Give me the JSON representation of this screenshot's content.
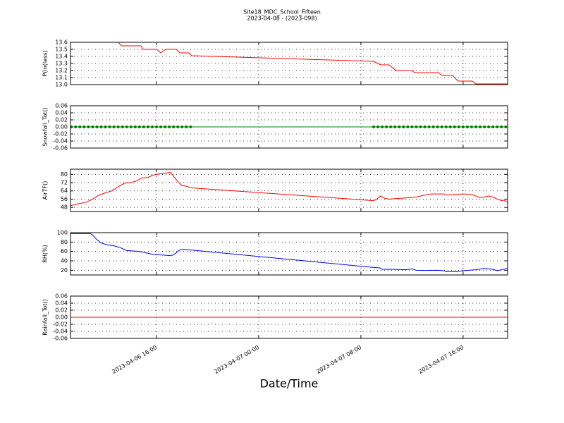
{
  "chart_data": [
    {
      "type": "line",
      "title": "Site18_MDC_School_Fifteen",
      "subtitle": "2023-04-08 - (2023-098)",
      "ylabel": "P(in(less)",
      "xlim": [
        "2023-04-06 09:16",
        "2023-04-07 19:29"
      ],
      "ylim": [
        13.0,
        13.6
      ],
      "yticks": [
        {
          "value": 13,
          "label": "13.0"
        },
        13.1,
        13.2,
        13.3,
        13.4,
        13.5,
        13.6
      ],
      "grid": true,
      "x": [
        "2023-04-06 09:16",
        "2023-04-06 13:01",
        "2023-04-06 13:14",
        "2023-04-06 14:47",
        "2023-04-06 14:57",
        "2023-04-06 16:00",
        "2023-04-06 16:20",
        "2023-04-06 16:43",
        "2023-04-06 17:33",
        "2023-04-06 17:49",
        "2023-04-06 18:32",
        "2023-04-06 18:45",
        "2023-04-07 08:59",
        "2023-04-07 09:33",
        "2023-04-07 10:12",
        "2023-04-07 10:45",
        "2023-04-07 12:01",
        "2023-04-07 12:11",
        "2023-04-07 14:04",
        "2023-04-07 14:21",
        "2023-04-07 15:10",
        "2023-04-07 15:36",
        "2023-04-07 16:43",
        "2023-04-07 16:59",
        "2023-04-07 19:29"
      ],
      "series": [
        {
          "name": "P",
          "color": "#ff0000",
          "values": [
            13.6,
            13.6,
            13.55,
            13.55,
            13.5,
            13.5,
            13.45,
            13.5,
            13.5,
            13.45,
            13.45,
            13.41,
            13.33,
            13.28,
            13.28,
            13.2,
            13.2,
            13.17,
            13.17,
            13.13,
            13.13,
            13.05,
            13.05,
            13.01,
            13.01
          ]
        }
      ]
    },
    {
      "type": "line",
      "ylabel": "Snowfall_Tot()",
      "markers": true,
      "xlim": [
        "2023-04-06 09:16",
        "2023-04-07 19:29"
      ],
      "ylim": [
        -0.06,
        0.06
      ],
      "yticks": [
        -0.06,
        -0.04,
        -0.02,
        {
          "value": 0,
          "label": "0.00"
        },
        0.02,
        0.04,
        0.06
      ],
      "grid": true,
      "x": [
        "2023-04-06 09:20",
        "2023-04-06 09:40",
        "2023-04-06 10:00",
        "2023-04-06 10:20",
        "2023-04-06 10:40",
        "2023-04-06 11:00",
        "2023-04-06 11:20",
        "2023-04-06 11:40",
        "2023-04-06 12:00",
        "2023-04-06 12:20",
        "2023-04-06 12:40",
        "2023-04-06 13:00",
        "2023-04-06 13:20",
        "2023-04-06 13:40",
        "2023-04-06 14:00",
        "2023-04-06 14:20",
        "2023-04-06 14:40",
        "2023-04-06 15:00",
        "2023-04-06 15:20",
        "2023-04-06 15:40",
        "2023-04-06 16:00",
        "2023-04-06 16:20",
        "2023-04-06 16:40",
        "2023-04-06 17:00",
        "2023-04-06 17:20",
        "2023-04-06 17:40",
        "2023-04-06 18:00",
        "2023-04-06 18:20",
        "2023-04-06 18:40",
        "2023-04-07 09:00",
        "2023-04-07 09:20",
        "2023-04-07 09:40",
        "2023-04-07 10:00",
        "2023-04-07 10:20",
        "2023-04-07 10:40",
        "2023-04-07 11:00",
        "2023-04-07 11:20",
        "2023-04-07 11:40",
        "2023-04-07 12:00",
        "2023-04-07 12:20",
        "2023-04-07 12:40",
        "2023-04-07 13:00",
        "2023-04-07 13:20",
        "2023-04-07 13:40",
        "2023-04-07 14:00",
        "2023-04-07 14:20",
        "2023-04-07 14:40",
        "2023-04-07 15:00",
        "2023-04-07 15:20",
        "2023-04-07 15:40",
        "2023-04-07 16:00",
        "2023-04-07 16:20",
        "2023-04-07 16:40",
        "2023-04-07 17:00",
        "2023-04-07 17:20",
        "2023-04-07 17:40",
        "2023-04-07 18:00",
        "2023-04-07 18:20",
        "2023-04-07 18:40",
        "2023-04-07 19:00",
        "2023-04-07 19:20"
      ],
      "series": [
        {
          "name": "Snowfall_Tot",
          "color": "#008000",
          "values": [
            0,
            0,
            0,
            0,
            0,
            0,
            0,
            0,
            0,
            0,
            0,
            0,
            0,
            0,
            0,
            0,
            0,
            0,
            0,
            0,
            0,
            0,
            0,
            0,
            0,
            0,
            0,
            0,
            0,
            0,
            0,
            0,
            0,
            0,
            0,
            0,
            0,
            0,
            0,
            0,
            0,
            0,
            0,
            0,
            0,
            0,
            0,
            0,
            0,
            0,
            0,
            0,
            0,
            0,
            0,
            0,
            0,
            0,
            0,
            0,
            0
          ]
        }
      ]
    },
    {
      "type": "line",
      "ylabel": "AirTF()",
      "xlim": [
        "2023-04-06 09:16",
        "2023-04-07 19:29"
      ],
      "ylim": [
        44,
        85
      ],
      "yticks": [
        48,
        56,
        64,
        72,
        80
      ],
      "grid": true,
      "x": [
        "2023-04-06 09:16",
        "2023-04-06 09:40",
        "2023-04-06 10:30",
        "2023-04-06 11:00",
        "2023-04-06 11:30",
        "2023-04-06 12:00",
        "2023-04-06 12:30",
        "2023-04-06 13:00",
        "2023-04-06 13:30",
        "2023-04-06 14:00",
        "2023-04-06 14:30",
        "2023-04-06 14:50",
        "2023-04-06 15:20",
        "2023-04-06 15:40",
        "2023-04-06 16:00",
        "2023-04-06 16:30",
        "2023-04-06 16:50",
        "2023-04-06 17:05",
        "2023-04-06 17:20",
        "2023-04-06 17:40",
        "2023-04-06 18:00",
        "2023-04-06 18:20",
        "2023-04-06 18:40",
        "2023-04-07 08:59",
        "2023-04-07 09:10",
        "2023-04-07 09:25",
        "2023-04-07 09:32",
        "2023-04-07 09:50",
        "2023-04-07 10:10",
        "2023-04-07 10:40",
        "2023-04-07 11:20",
        "2023-04-07 12:20",
        "2023-04-07 13:00",
        "2023-04-07 13:30",
        "2023-04-07 14:30",
        "2023-04-07 14:40",
        "2023-04-07 15:20",
        "2023-04-07 16:00",
        "2023-04-07 16:40",
        "2023-04-07 17:00",
        "2023-04-07 17:20",
        "2023-04-07 17:40",
        "2023-04-07 18:00",
        "2023-04-07 18:20",
        "2023-04-07 18:40",
        "2023-04-07 19:00",
        "2023-04-07 19:10",
        "2023-04-07 19:29"
      ],
      "series": [
        {
          "name": "AirTF",
          "color": "#ff0000",
          "values": [
            49.5,
            51,
            53,
            56,
            60,
            62,
            64,
            68,
            71.5,
            72,
            74,
            76.5,
            77,
            79,
            80,
            81,
            81.5,
            82,
            78,
            73,
            69,
            68.5,
            67,
            54.5,
            55.5,
            57.5,
            59,
            57,
            56,
            56.5,
            57,
            58,
            60,
            61,
            61,
            60,
            60.5,
            61,
            60.5,
            59,
            57.5,
            58,
            59,
            58,
            56,
            54.5,
            55,
            53
          ]
        }
      ]
    },
    {
      "type": "line",
      "ylabel": "RH(%)",
      "xlim": [
        "2023-04-06 09:16",
        "2023-04-07 19:29"
      ],
      "ylim": [
        10,
        100
      ],
      "yticks": [
        20,
        40,
        60,
        80,
        100
      ],
      "grid": true,
      "x": [
        "2023-04-06 09:16",
        "2023-04-06 10:50",
        "2023-04-06 11:00",
        "2023-04-06 11:20",
        "2023-04-06 11:40",
        "2023-04-06 12:10",
        "2023-04-06 12:40",
        "2023-04-06 13:10",
        "2023-04-06 13:40",
        "2023-04-06 14:10",
        "2023-04-06 14:40",
        "2023-04-06 15:00",
        "2023-04-06 15:20",
        "2023-04-06 15:40",
        "2023-04-06 16:10",
        "2023-04-06 16:40",
        "2023-04-06 17:00",
        "2023-04-06 17:15",
        "2023-04-06 17:30",
        "2023-04-06 17:45",
        "2023-04-06 18:00",
        "2023-04-06 18:20",
        "2023-04-07 08:59",
        "2023-04-07 09:30",
        "2023-04-07 09:40",
        "2023-04-07 10:30",
        "2023-04-07 11:30",
        "2023-04-07 12:00",
        "2023-04-07 12:20",
        "2023-04-07 13:00",
        "2023-04-07 14:00",
        "2023-04-07 14:30",
        "2023-04-07 14:40",
        "2023-04-07 15:30",
        "2023-04-07 16:00",
        "2023-04-07 17:00",
        "2023-04-07 17:40",
        "2023-04-07 18:20",
        "2023-04-07 18:40",
        "2023-04-07 19:29"
      ],
      "series": [
        {
          "name": "RH",
          "color": "#0000ff",
          "values": [
            98,
            98,
            95,
            85,
            78,
            74,
            72,
            68,
            62,
            61,
            60,
            58,
            56,
            54,
            53,
            52,
            51,
            52,
            56,
            62,
            65,
            64,
            26,
            25,
            22,
            22,
            21,
            23,
            20,
            19.5,
            20,
            19,
            17,
            17,
            19,
            21,
            24,
            22,
            19,
            24
          ]
        }
      ]
    },
    {
      "type": "line",
      "ylabel": "Rainfall_Tot()",
      "xlabel": "Date/Time",
      "xlim": [
        "2023-04-06 09:16",
        "2023-04-07 19:29"
      ],
      "ylim": [
        -0.06,
        0.06
      ],
      "yticks": [
        -0.06,
        -0.04,
        -0.02,
        {
          "value": 0,
          "label": "0.00"
        },
        0.02,
        0.04,
        0.06
      ],
      "grid": true,
      "xticks": [
        {
          "value": "2023-04-06 16:00",
          "label": "2023-04-06 16:00"
        },
        {
          "value": "2023-04-07 00:00",
          "label": "2023-04-07 00:00"
        },
        {
          "value": "2023-04-07 08:00",
          "label": "2023-04-07 08:00"
        },
        {
          "value": "2023-04-07 16:00",
          "label": "2023-04-07 16:00"
        }
      ],
      "x": [
        "2023-04-06 09:16",
        "2023-04-07 08:59",
        "2023-04-07 19:29"
      ],
      "series": [
        {
          "name": "Rainfall_Tot",
          "color": "#ff0000",
          "values": [
            0,
            0,
            0
          ]
        }
      ]
    }
  ]
}
